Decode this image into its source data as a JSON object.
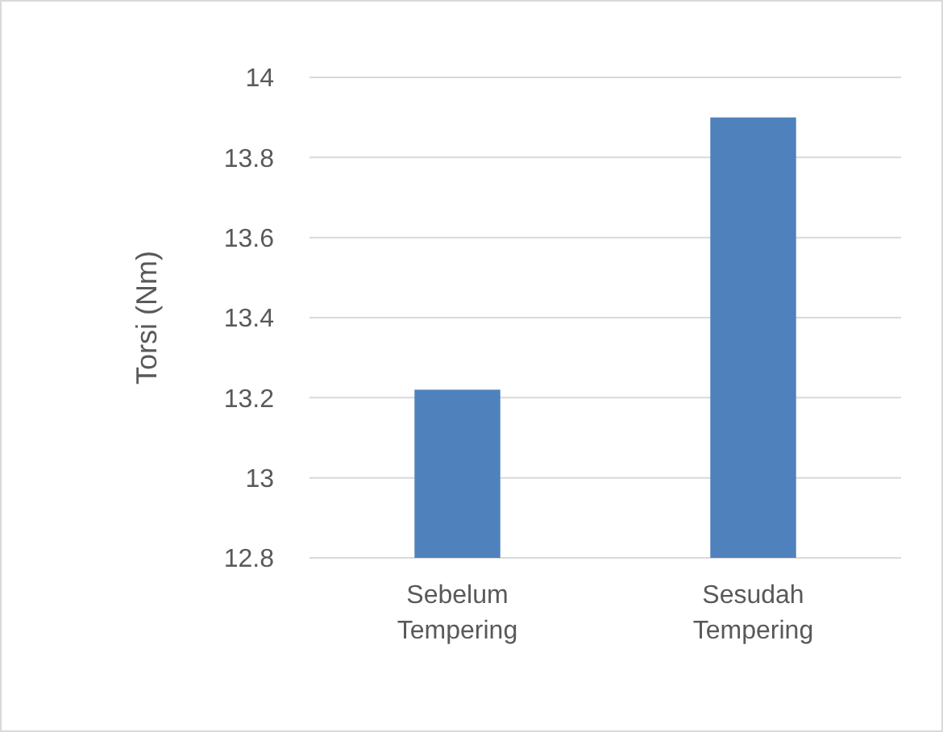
{
  "chart_data": {
    "type": "bar",
    "ylabel": "Torsi (Nm)",
    "categories": [
      "Sebelum Tempering",
      "Sesudah Tempering"
    ],
    "values": [
      13.22,
      13.9
    ],
    "color": "#4f81bd",
    "ylim": [
      12.8,
      14
    ],
    "yticks": [
      12.8,
      13,
      13.2,
      13.4,
      13.6,
      13.8,
      14
    ],
    "grid": "y"
  }
}
